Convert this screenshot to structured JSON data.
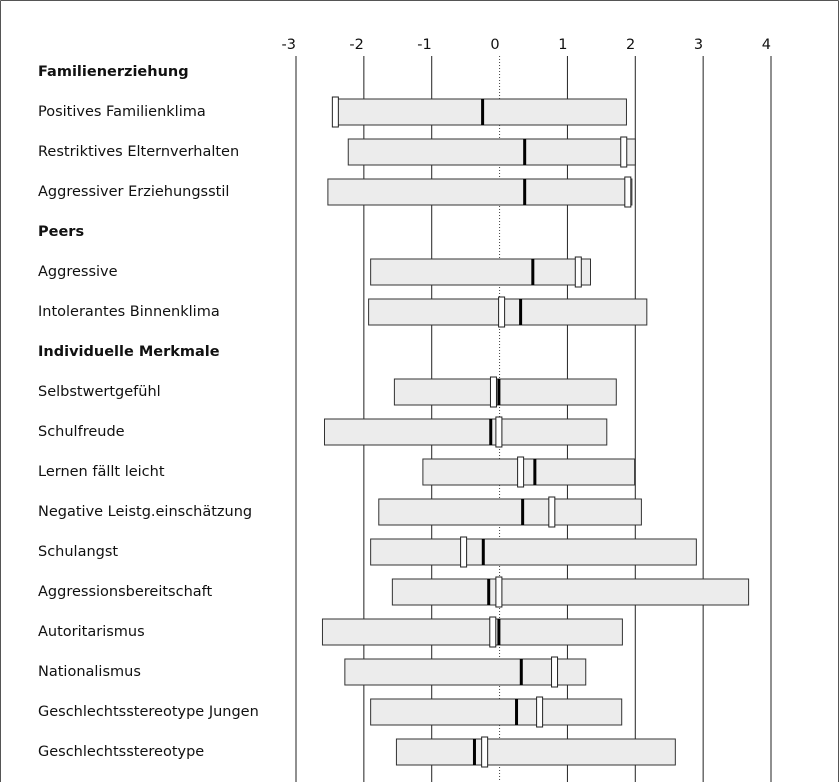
{
  "chart_data": {
    "type": "range",
    "xlim": [
      -3,
      4
    ],
    "xticks": [
      -3,
      -2,
      -1,
      0,
      1,
      2,
      3,
      4
    ],
    "zero_line_dotted": true,
    "groups": [
      {
        "name": "Familienerziehung",
        "categories": [
          "Positives Familienklima",
          "Restriktives Elternverhalten",
          "Aggressiver Erziehungsstil"
        ],
        "low": [
          -2.45,
          -2.23,
          -2.53
        ],
        "high": [
          1.87,
          2.0,
          1.95
        ],
        "mean": [
          -0.25,
          0.37,
          0.37
        ],
        "marker": [
          -2.42,
          1.83,
          1.89
        ]
      },
      {
        "name": "Peers",
        "categories": [
          "Aggressive",
          "Intolerantes Binnenklima"
        ],
        "low": [
          -1.9,
          -1.93
        ],
        "high": [
          1.34,
          2.17
        ],
        "mean": [
          0.49,
          0.31
        ],
        "marker": [
          1.16,
          0.03
        ]
      },
      {
        "name": "Individuelle Merkmale",
        "categories": [
          "Selbstwertgefühl",
          "Schulfreude",
          "Lernen fällt leicht",
          "Negative Leistg.einschätzung",
          "Schulangst",
          "Aggressionsbereitschaft",
          "Autoritarismus",
          "Nationalismus",
          "Geschlechtsstereotype Jungen",
          "Geschlechtsstereotype"
        ],
        "low": [
          -1.55,
          -2.58,
          -1.13,
          -1.78,
          -1.9,
          -1.58,
          -2.61,
          -2.28,
          -1.9,
          -1.52
        ],
        "high": [
          1.72,
          1.58,
          1.99,
          2.09,
          2.9,
          3.67,
          1.81,
          1.27,
          1.8,
          2.59
        ],
        "mean": [
          -0.01,
          -0.13,
          0.52,
          0.34,
          -0.24,
          -0.16,
          -0.01,
          0.32,
          0.25,
          -0.37
        ],
        "marker": [
          -0.09,
          -0.01,
          0.31,
          0.77,
          -0.53,
          -0.01,
          -0.1,
          0.81,
          0.59,
          -0.22
        ]
      }
    ]
  }
}
